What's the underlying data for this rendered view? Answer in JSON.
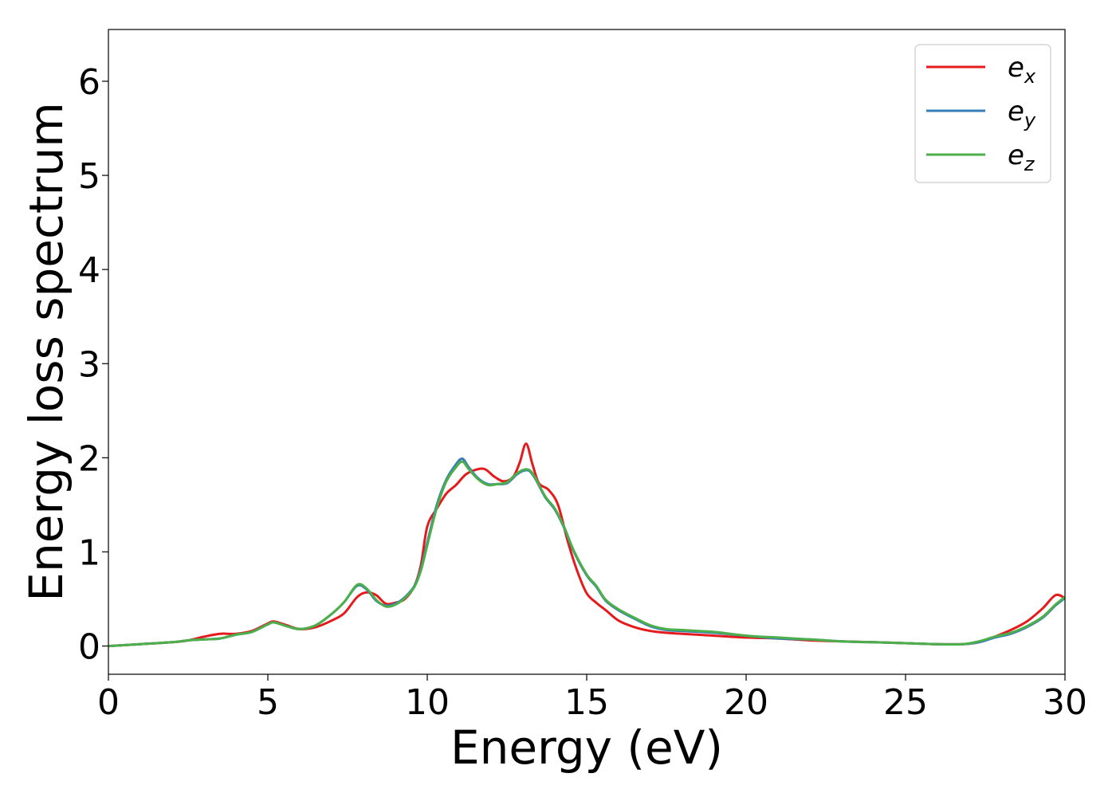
{
  "chart_data": {
    "type": "line",
    "title": "",
    "xlabel": "Energy (eV)",
    "ylabel": "Energy loss spectrum",
    "xlim": [
      0,
      30
    ],
    "ylim": [
      -0.3,
      6.55
    ],
    "xticks": [
      0,
      5,
      10,
      15,
      20,
      25,
      30
    ],
    "yticks": [
      0,
      1,
      2,
      3,
      4,
      5,
      6
    ],
    "grid": false,
    "legend_position": "top-right",
    "series": [
      {
        "name": "e_x",
        "legend_base": "e",
        "legend_sub": "x",
        "color": "#e41a1c",
        "x": [
          0,
          1,
          2,
          2.5,
          3,
          3.5,
          4,
          4.5,
          5,
          5.2,
          5.6,
          6,
          6.5,
          7,
          7.4,
          7.8,
          8.1,
          8.4,
          8.7,
          9,
          9.3,
          9.6,
          9.8,
          10,
          10.3,
          10.6,
          10.9,
          11.2,
          11.5,
          11.8,
          12.1,
          12.4,
          12.7,
          12.9,
          13.1,
          13.3,
          13.5,
          13.8,
          14.1,
          14.4,
          14.7,
          15,
          15.3,
          15.6,
          16,
          16.5,
          17,
          17.5,
          18,
          19,
          20,
          21,
          22,
          23,
          24,
          25,
          26,
          26.8,
          27.3,
          27.8,
          28.3,
          28.8,
          29.3,
          29.7,
          30
        ],
        "y": [
          0,
          0.02,
          0.04,
          0.06,
          0.1,
          0.13,
          0.13,
          0.16,
          0.24,
          0.26,
          0.22,
          0.18,
          0.2,
          0.27,
          0.35,
          0.52,
          0.57,
          0.54,
          0.45,
          0.46,
          0.5,
          0.64,
          0.86,
          1.27,
          1.46,
          1.62,
          1.71,
          1.82,
          1.87,
          1.88,
          1.8,
          1.75,
          1.8,
          1.95,
          2.15,
          1.93,
          1.73,
          1.66,
          1.5,
          1.12,
          0.8,
          0.56,
          0.46,
          0.38,
          0.27,
          0.2,
          0.16,
          0.14,
          0.13,
          0.11,
          0.09,
          0.08,
          0.06,
          0.05,
          0.04,
          0.03,
          0.02,
          0.02,
          0.04,
          0.1,
          0.17,
          0.26,
          0.4,
          0.54,
          0.51
        ]
      },
      {
        "name": "e_y",
        "legend_base": "e",
        "legend_sub": "y",
        "color": "#377eb8",
        "x": [
          0,
          1,
          2,
          2.5,
          3,
          3.5,
          4,
          4.5,
          5,
          5.2,
          5.6,
          6,
          6.5,
          7,
          7.4,
          7.8,
          8.1,
          8.4,
          8.7,
          9,
          9.3,
          9.6,
          9.8,
          10,
          10.3,
          10.6,
          10.9,
          11.1,
          11.3,
          11.6,
          11.9,
          12.2,
          12.5,
          12.8,
          13,
          13.2,
          13.4,
          13.7,
          14,
          14.3,
          14.6,
          15,
          15.3,
          15.6,
          16,
          16.5,
          17,
          17.5,
          18,
          19,
          20,
          21,
          22,
          23,
          24,
          25,
          26,
          26.8,
          27.3,
          27.8,
          28.3,
          28.8,
          29.3,
          29.7,
          30
        ],
        "y": [
          0,
          0.02,
          0.04,
          0.06,
          0.07,
          0.08,
          0.12,
          0.15,
          0.23,
          0.25,
          0.21,
          0.18,
          0.22,
          0.34,
          0.47,
          0.64,
          0.6,
          0.48,
          0.43,
          0.45,
          0.52,
          0.64,
          0.82,
          1.1,
          1.5,
          1.77,
          1.93,
          1.99,
          1.9,
          1.78,
          1.72,
          1.72,
          1.73,
          1.82,
          1.86,
          1.86,
          1.77,
          1.58,
          1.45,
          1.25,
          1.0,
          0.75,
          0.63,
          0.48,
          0.38,
          0.29,
          0.21,
          0.17,
          0.16,
          0.14,
          0.11,
          0.08,
          0.07,
          0.05,
          0.04,
          0.03,
          0.02,
          0.02,
          0.04,
          0.09,
          0.13,
          0.2,
          0.3,
          0.43,
          0.51
        ]
      },
      {
        "name": "e_z",
        "legend_base": "e",
        "legend_sub": "z",
        "color": "#4daf4a",
        "x": [
          0,
          1,
          2,
          2.5,
          3,
          3.5,
          4,
          4.5,
          5,
          5.2,
          5.6,
          6,
          6.5,
          7,
          7.4,
          7.8,
          8.1,
          8.4,
          8.7,
          9,
          9.3,
          9.6,
          9.8,
          10,
          10.3,
          10.6,
          10.9,
          11.1,
          11.3,
          11.6,
          11.9,
          12.2,
          12.5,
          12.8,
          13,
          13.2,
          13.4,
          13.7,
          14,
          14.3,
          14.6,
          15,
          15.3,
          15.6,
          16,
          16.5,
          17,
          17.5,
          18,
          19,
          20,
          21,
          22,
          23,
          24,
          25,
          26,
          26.8,
          27.3,
          27.8,
          28.3,
          28.8,
          29.3,
          29.7,
          30
        ],
        "y": [
          0,
          0.02,
          0.04,
          0.06,
          0.07,
          0.08,
          0.12,
          0.15,
          0.23,
          0.25,
          0.21,
          0.18,
          0.22,
          0.34,
          0.47,
          0.65,
          0.61,
          0.49,
          0.42,
          0.44,
          0.51,
          0.63,
          0.8,
          1.07,
          1.47,
          1.75,
          1.9,
          1.96,
          1.88,
          1.77,
          1.71,
          1.72,
          1.74,
          1.83,
          1.87,
          1.87,
          1.78,
          1.59,
          1.46,
          1.26,
          1.01,
          0.76,
          0.64,
          0.49,
          0.39,
          0.3,
          0.22,
          0.18,
          0.17,
          0.15,
          0.11,
          0.09,
          0.07,
          0.05,
          0.04,
          0.03,
          0.02,
          0.02,
          0.05,
          0.1,
          0.14,
          0.21,
          0.31,
          0.44,
          0.52
        ]
      }
    ]
  }
}
